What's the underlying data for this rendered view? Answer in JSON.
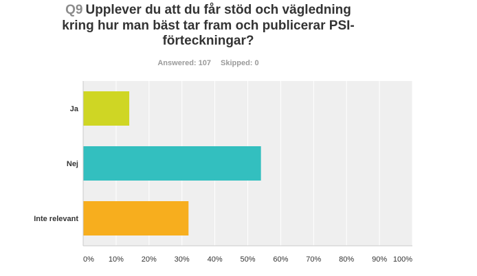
{
  "question": {
    "number": "Q9",
    "text": "Upplever du att du får stöd och vägledning kring hur man bäst tar fram och publicerar PSI-förteckningar?"
  },
  "stats": {
    "answered": "Answered: 107",
    "skipped": "Skipped: 0"
  },
  "colors": {
    "plot_background": "#efefef",
    "gridline": "#ffffff",
    "axis": "#c8c8c8",
    "bars": [
      "#cfd624",
      "#33bfbf",
      "#f7ae1e"
    ]
  },
  "chart_data": {
    "type": "bar",
    "orientation": "horizontal",
    "categories": [
      "Ja",
      "Nej",
      "Inte relevant"
    ],
    "values": [
      14,
      54,
      32
    ],
    "xlim": [
      0,
      100
    ],
    "xticks": [
      "0%",
      "10%",
      "20%",
      "30%",
      "40%",
      "50%",
      "60%",
      "70%",
      "80%",
      "90%",
      "100%"
    ],
    "grid": true
  }
}
